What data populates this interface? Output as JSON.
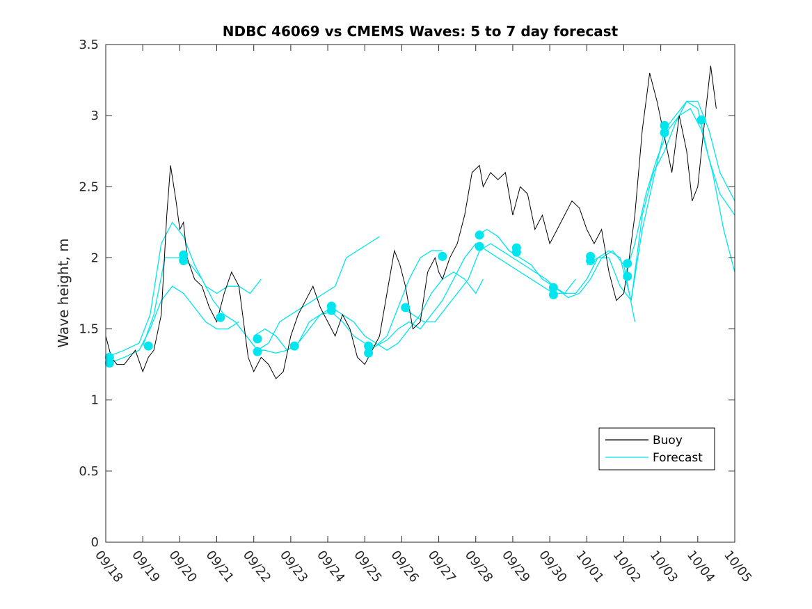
{
  "chart_data": {
    "type": "line",
    "title": "NDBC 46069 vs CMEMS Waves: 5 to 7 day forecast",
    "xlabel": "",
    "ylabel": "Wave height, m",
    "xlim": [
      0,
      17
    ],
    "ylim": [
      0,
      3.5
    ],
    "x_tick_labels": [
      "09/18",
      "09/19",
      "09/20",
      "09/21",
      "09/22",
      "09/23",
      "09/24",
      "09/25",
      "09/26",
      "09/27",
      "09/28",
      "09/29",
      "09/30",
      "10/01",
      "10/02",
      "10/03",
      "10/04",
      "10/05"
    ],
    "y_ticks": [
      0,
      0.5,
      1,
      1.5,
      2,
      2.5,
      3,
      3.5
    ],
    "y_tick_labels": [
      "0",
      "0.5",
      "1",
      "1.5",
      "2",
      "2.5",
      "3",
      "3.5"
    ],
    "legend": {
      "placement": "bottom-right",
      "entries": [
        "Buoy",
        "Forecast"
      ]
    },
    "colors": {
      "buoy": "#000000",
      "forecast": "#00e5ee",
      "markers": "#00e5ee"
    },
    "series": [
      {
        "name": "Buoy",
        "x_units": "days since 09/18",
        "x": [
          0,
          0.15,
          0.3,
          0.5,
          0.8,
          1.0,
          1.15,
          1.3,
          1.5,
          1.65,
          1.75,
          1.9,
          2.0,
          2.1,
          2.2,
          2.4,
          2.6,
          2.8,
          3.0,
          3.2,
          3.4,
          3.6,
          3.75,
          3.85,
          4.0,
          4.2,
          4.4,
          4.6,
          4.8,
          5.0,
          5.2,
          5.4,
          5.6,
          5.8,
          6.0,
          6.2,
          6.4,
          6.6,
          6.8,
          7.0,
          7.2,
          7.4,
          7.6,
          7.8,
          7.95,
          8.1,
          8.3,
          8.5,
          8.7,
          8.9,
          9.0,
          9.1,
          9.3,
          9.5,
          9.7,
          9.9,
          10.1,
          10.2,
          10.4,
          10.6,
          10.8,
          11.0,
          11.2,
          11.4,
          11.6,
          11.8,
          12.0,
          12.2,
          12.4,
          12.6,
          12.8,
          13.0,
          13.2,
          13.4,
          13.6,
          13.8,
          14.0,
          14.15,
          14.3,
          14.5,
          14.7,
          14.9,
          15.1,
          15.3,
          15.5,
          15.7,
          15.85,
          16.0,
          16.2,
          16.35,
          16.5
        ],
        "values": [
          1.45,
          1.3,
          1.25,
          1.25,
          1.35,
          1.2,
          1.3,
          1.35,
          1.6,
          2.3,
          2.65,
          2.4,
          2.2,
          2.25,
          2.0,
          1.85,
          1.8,
          1.65,
          1.55,
          1.75,
          1.9,
          1.8,
          1.5,
          1.3,
          1.2,
          1.3,
          1.25,
          1.15,
          1.2,
          1.45,
          1.6,
          1.7,
          1.8,
          1.65,
          1.55,
          1.45,
          1.6,
          1.5,
          1.3,
          1.25,
          1.35,
          1.45,
          1.75,
          2.05,
          1.95,
          1.8,
          1.5,
          1.55,
          1.9,
          2.0,
          1.9,
          1.85,
          2.0,
          2.1,
          2.3,
          2.6,
          2.65,
          2.5,
          2.6,
          2.55,
          2.6,
          2.3,
          2.5,
          2.45,
          2.2,
          2.3,
          2.1,
          2.2,
          2.3,
          2.4,
          2.35,
          2.2,
          2.1,
          2.2,
          1.9,
          1.7,
          1.75,
          2.0,
          2.3,
          2.9,
          3.3,
          3.1,
          2.85,
          2.6,
          3.0,
          2.75,
          2.4,
          2.5,
          3.0,
          3.35,
          3.05
        ]
      },
      {
        "name": "Forecast",
        "runs": [
          {
            "x": [
              0,
              0.5,
              0.9,
              1.2,
              1.5,
              1.8,
              2.1,
              2.4,
              2.7,
              3.0,
              3.3,
              3.6,
              3.9,
              4.2
            ],
            "values": [
              1.3,
              1.35,
              1.4,
              1.6,
              2.1,
              2.25,
              2.15,
              1.95,
              1.8,
              1.75,
              1.8,
              1.8,
              1.75,
              1.85
            ]
          },
          {
            "x": [
              0,
              0.5,
              0.9,
              1.2,
              1.5,
              1.8,
              2.1,
              2.4,
              2.7,
              3.0,
              3.3,
              3.6
            ],
            "values": [
              1.25,
              1.3,
              1.35,
              1.5,
              1.7,
              1.8,
              1.75,
              1.65,
              1.55,
              1.5,
              1.5,
              1.55
            ]
          },
          {
            "x": [
              1.0,
              1.3,
              1.6,
              2.0,
              2.3,
              2.6,
              2.9,
              3.2,
              3.5,
              3.8,
              4.1,
              4.4,
              4.7,
              5.0,
              5.3,
              5.6,
              5.9,
              6.2,
              6.5,
              6.8,
              7.1,
              7.4
            ],
            "values": [
              1.38,
              1.6,
              2.0,
              2.0,
              1.95,
              1.85,
              1.7,
              1.6,
              1.55,
              1.45,
              1.35,
              1.4,
              1.55,
              1.6,
              1.65,
              1.7,
              1.75,
              1.8,
              2.0,
              2.05,
              2.1,
              2.15
            ]
          },
          {
            "x": [
              4.0,
              4.3,
              4.6,
              4.9,
              5.2,
              5.5,
              5.8,
              6.1,
              6.4,
              6.7,
              7.0,
              7.3,
              7.6,
              7.9,
              8.2,
              8.5,
              8.8,
              9.1,
              9.4,
              9.7,
              10.0,
              10.2
            ],
            "values": [
              1.45,
              1.5,
              1.45,
              1.35,
              1.4,
              1.5,
              1.6,
              1.65,
              1.6,
              1.55,
              1.45,
              1.4,
              1.35,
              1.4,
              1.5,
              1.6,
              1.75,
              1.85,
              1.9,
              1.85,
              1.75,
              1.85
            ]
          },
          {
            "x": [
              4.0,
              4.3,
              4.6,
              4.9,
              5.2,
              5.5,
              5.8,
              6.1,
              6.4,
              6.7,
              7.0,
              7.3,
              7.6,
              7.9,
              8.2,
              8.5,
              8.8,
              9.1
            ],
            "values": [
              1.35,
              1.35,
              1.33,
              1.35,
              1.4,
              1.55,
              1.6,
              1.62,
              1.55,
              1.45,
              1.4,
              1.38,
              1.45,
              1.65,
              1.85,
              2.0,
              2.05,
              2.05
            ]
          },
          {
            "x": [
              7.0,
              7.3,
              7.6,
              7.9,
              8.2,
              8.5,
              8.8,
              9.1,
              9.4,
              9.7,
              10.0,
              10.3,
              10.6,
              10.9,
              11.2,
              11.5,
              11.8,
              12.1,
              12.4,
              12.7
            ],
            "values": [
              1.33,
              1.38,
              1.42,
              1.5,
              1.55,
              1.5,
              1.6,
              1.7,
              1.85,
              2.0,
              2.1,
              2.05,
              2.0,
              1.95,
              1.9,
              1.85,
              1.8,
              1.75,
              1.75,
              1.85
            ]
          },
          {
            "x": [
              8.0,
              8.3,
              8.6,
              8.9,
              9.2,
              9.5,
              9.8,
              10.1,
              10.4,
              10.7,
              11.0,
              11.3,
              11.6,
              11.9,
              12.2,
              12.5,
              12.8,
              13.1,
              13.4,
              13.7,
              14.0,
              14.3
            ],
            "values": [
              1.65,
              1.6,
              1.55,
              1.55,
              1.65,
              1.75,
              1.85,
              2.05,
              2.1,
              2.05,
              2.0,
              1.95,
              1.9,
              1.85,
              1.78,
              1.72,
              1.75,
              1.85,
              2.0,
              2.05,
              1.95,
              1.55
            ]
          },
          {
            "x": [
              10.0,
              10.3,
              10.6,
              10.9,
              11.2,
              11.5,
              11.8,
              12.1,
              12.4,
              12.7,
              13.0,
              13.3,
              13.6,
              13.9,
              14.2,
              14.5,
              14.8,
              15.1,
              15.4,
              15.7,
              16.0,
              16.3,
              16.6,
              17.0
            ],
            "values": [
              2.15,
              2.2,
              2.15,
              2.05,
              2.0,
              1.95,
              1.85,
              1.8,
              1.75,
              1.75,
              1.85,
              2.0,
              2.05,
              2.0,
              1.7,
              2.3,
              2.6,
              2.75,
              2.95,
              3.1,
              3.05,
              2.7,
              2.45,
              2.3
            ]
          },
          {
            "x": [
              13.0,
              13.3,
              13.6,
              13.9,
              14.2,
              14.5,
              14.8,
              15.1,
              15.4,
              15.7,
              16.0,
              16.3,
              16.6,
              17.0
            ],
            "values": [
              1.95,
              2.0,
              2.0,
              1.8,
              1.7,
              2.2,
              2.55,
              2.9,
              3.0,
              3.1,
              3.1,
              2.9,
              2.6,
              2.4
            ]
          },
          {
            "x": [
              14.0,
              14.3,
              14.6,
              14.9,
              15.2,
              15.5,
              15.8,
              16.1,
              16.4,
              16.7,
              17.0
            ],
            "values": [
              1.85,
              2.1,
              2.45,
              2.7,
              2.9,
              3.0,
              3.05,
              2.9,
              2.6,
              2.2,
              1.9
            ]
          }
        ],
        "markers": [
          {
            "x": 0.1,
            "y": 1.26
          },
          {
            "x": 0.1,
            "y": 1.3
          },
          {
            "x": 1.15,
            "y": 1.38
          },
          {
            "x": 2.1,
            "y": 1.98
          },
          {
            "x": 2.1,
            "y": 2.02
          },
          {
            "x": 3.1,
            "y": 1.58
          },
          {
            "x": 4.1,
            "y": 1.34
          },
          {
            "x": 4.1,
            "y": 1.43
          },
          {
            "x": 5.1,
            "y": 1.38
          },
          {
            "x": 6.1,
            "y": 1.63
          },
          {
            "x": 6.1,
            "y": 1.66
          },
          {
            "x": 7.1,
            "y": 1.33
          },
          {
            "x": 7.1,
            "y": 1.38
          },
          {
            "x": 8.1,
            "y": 1.65
          },
          {
            "x": 9.1,
            "y": 2.01
          },
          {
            "x": 10.1,
            "y": 2.08
          },
          {
            "x": 10.1,
            "y": 2.16
          },
          {
            "x": 11.1,
            "y": 2.04
          },
          {
            "x": 11.1,
            "y": 2.07
          },
          {
            "x": 12.1,
            "y": 1.74
          },
          {
            "x": 12.1,
            "y": 1.79
          },
          {
            "x": 13.1,
            "y": 1.98
          },
          {
            "x": 13.1,
            "y": 2.01
          },
          {
            "x": 14.1,
            "y": 1.87
          },
          {
            "x": 14.1,
            "y": 1.96
          },
          {
            "x": 15.1,
            "y": 2.88
          },
          {
            "x": 15.1,
            "y": 2.93
          },
          {
            "x": 16.1,
            "y": 2.97
          }
        ]
      }
    ]
  }
}
